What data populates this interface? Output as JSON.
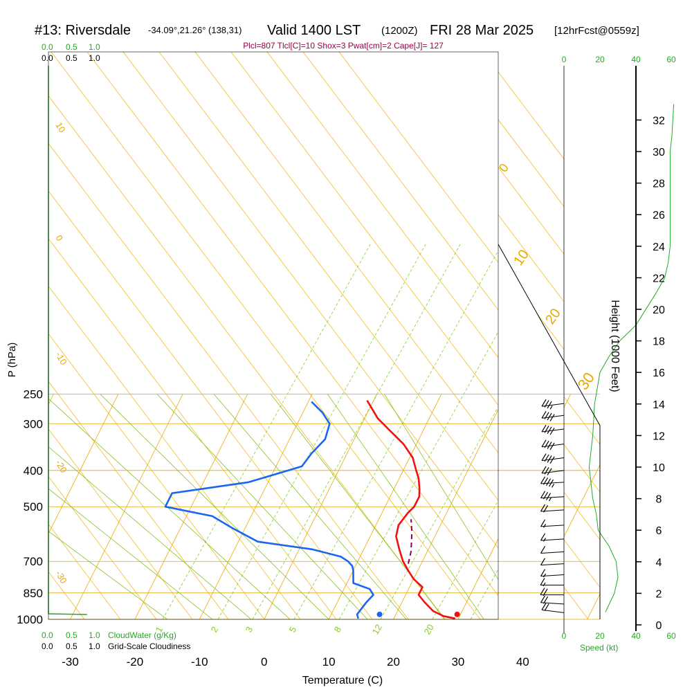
{
  "header": {
    "station": "#13: Riversdale",
    "location": "-34.09°,21.26° (138,31)",
    "valid": "Valid 1400 LST",
    "utc": "(1200Z)",
    "date": "FRI 28 Mar 2025",
    "forecast": "[12hrFcst@0559z]"
  },
  "indices": "Plcl=807 Tlcl[C]=10 Shox=3 Pwat[cm]=2 Cape[J]= 127",
  "axes": {
    "xlabel": "Temperature (C)",
    "ylabel": "P (hPa)",
    "height_label": "Height (1000 Feet)",
    "speed_label": "Speed (kt)",
    "cloudwater_label": "CloudWater (g/Kg)",
    "cloudiness_label": "Grid-Scale Cloudiness"
  },
  "scales": {
    "cloud_ticks": [
      "0.0",
      "0.5",
      "1.0"
    ],
    "speed_ticks": [
      "0",
      "20",
      "40",
      "60"
    ]
  },
  "colors": {
    "temperature": "#ee1111",
    "dewpoint": "#1a66ee",
    "parcel": "#880055",
    "isotherm": "#e8a800",
    "dry_adiabat": "#f0b400",
    "moist_adiabat": "#88c020",
    "mixing_ratio": "#88cc22",
    "green": "#22aa22",
    "indices": "#990044"
  },
  "chart_data": {
    "type": "line",
    "title": "#13: Riversdale Valid 1400 LST (1200Z) FRI 28 Mar 2025",
    "xlim": [
      -34,
      46
    ],
    "ylim": [
      1000,
      250
    ],
    "y_scale": "log",
    "x_ticks": [
      -30,
      -20,
      -10,
      0,
      10,
      20,
      30,
      40
    ],
    "pressure_ticks": [
      250,
      300,
      400,
      500,
      700,
      850,
      1000
    ],
    "height_ticks": [
      0,
      2,
      4,
      6,
      8,
      10,
      12,
      14,
      16,
      18,
      20,
      22,
      24,
      26,
      28,
      30,
      32
    ],
    "isotherm_labels": [
      {
        "temp": 10,
        "label": "10"
      },
      {
        "temp": 0,
        "label": "0"
      },
      {
        "temp": -10,
        "label": "-10"
      },
      {
        "temp": -20,
        "label": "-20"
      },
      {
        "temp": -30,
        "label": "-30"
      },
      {
        "temp": 0,
        "label": "0"
      },
      {
        "temp": 10,
        "label": "10"
      },
      {
        "temp": 20,
        "label": "20"
      },
      {
        "temp": 30,
        "label": "30"
      }
    ],
    "mixing_ratio_labels": [
      "1",
      "2",
      "3",
      "5",
      "8",
      "12",
      "20"
    ],
    "series": [
      {
        "name": "Temperature",
        "points": [
          {
            "p": 995,
            "t": 29.5
          },
          {
            "p": 980,
            "t": 27.5
          },
          {
            "p": 950,
            "t": 25.5
          },
          {
            "p": 900,
            "t": 23.5
          },
          {
            "p": 860,
            "t": 22.0
          },
          {
            "p": 820,
            "t": 22.0
          },
          {
            "p": 780,
            "t": 20.0
          },
          {
            "p": 740,
            "t": 18.5
          },
          {
            "p": 700,
            "t": 17.0
          },
          {
            "p": 650,
            "t": 15.5
          },
          {
            "p": 600,
            "t": 14.0
          },
          {
            "p": 560,
            "t": 13.5
          },
          {
            "p": 520,
            "t": 14.0
          },
          {
            "p": 500,
            "t": 14.5
          },
          {
            "p": 470,
            "t": 14.5
          },
          {
            "p": 450,
            "t": 14.0
          },
          {
            "p": 420,
            "t": 13.0
          },
          {
            "p": 400,
            "t": 12.0
          },
          {
            "p": 370,
            "t": 10.5
          },
          {
            "p": 340,
            "t": 8.0
          },
          {
            "p": 310,
            "t": 4.5
          },
          {
            "p": 290,
            "t": 2.0
          },
          {
            "p": 260,
            "t": -1.0
          }
        ]
      },
      {
        "name": "Dewpoint",
        "points": [
          {
            "p": 995,
            "t": 14.5
          },
          {
            "p": 970,
            "t": 14.0
          },
          {
            "p": 900,
            "t": 14.5
          },
          {
            "p": 860,
            "t": 15.0
          },
          {
            "p": 830,
            "t": 14.0
          },
          {
            "p": 800,
            "t": 11.0
          },
          {
            "p": 770,
            "t": 10.5
          },
          {
            "p": 740,
            "t": 10.0
          },
          {
            "p": 720,
            "t": 9.5
          },
          {
            "p": 700,
            "t": 8.5
          },
          {
            "p": 680,
            "t": 7.0
          },
          {
            "p": 650,
            "t": 2.0
          },
          {
            "p": 620,
            "t": -7.0
          },
          {
            "p": 570,
            "t": -12.0
          },
          {
            "p": 530,
            "t": -16.0
          },
          {
            "p": 500,
            "t": -24.0
          },
          {
            "p": 460,
            "t": -24.0
          },
          {
            "p": 430,
            "t": -13.0
          },
          {
            "p": 390,
            "t": -6.0
          },
          {
            "p": 360,
            "t": -5.5
          },
          {
            "p": 330,
            "t": -4.5
          },
          {
            "p": 300,
            "t": -5.0
          },
          {
            "p": 280,
            "t": -7.0
          },
          {
            "p": 262,
            "t": -9.5
          }
        ]
      },
      {
        "name": "Parcel",
        "points": [
          {
            "p": 710,
            "t": 18.0
          },
          {
            "p": 660,
            "t": 17.5
          },
          {
            "p": 620,
            "t": 16.8
          },
          {
            "p": 580,
            "t": 16.0
          },
          {
            "p": 540,
            "t": 15.0
          }
        ]
      }
    ],
    "surface_points": [
      {
        "name": "surface-temperature",
        "p": 995,
        "t": 29.8
      },
      {
        "name": "surface-dewpoint",
        "p": 995,
        "t": 17.8
      }
    ],
    "height_profile_speed": [
      {
        "h": 0.8,
        "v": 23
      },
      {
        "h": 2,
        "v": 28
      },
      {
        "h": 3,
        "v": 30
      },
      {
        "h": 4,
        "v": 29
      },
      {
        "h": 5,
        "v": 25
      },
      {
        "h": 6,
        "v": 19
      },
      {
        "h": 7,
        "v": 18
      },
      {
        "h": 8,
        "v": 16
      },
      {
        "h": 10,
        "v": 14
      },
      {
        "h": 12,
        "v": 16
      },
      {
        "h": 14,
        "v": 17
      },
      {
        "h": 16,
        "v": 20
      },
      {
        "h": 17,
        "v": 25
      },
      {
        "h": 18,
        "v": 31
      },
      {
        "h": 19,
        "v": 40
      },
      {
        "h": 21,
        "v": 51
      },
      {
        "h": 22,
        "v": 56
      },
      {
        "h": 23,
        "v": 58
      },
      {
        "h": 24,
        "v": 59
      },
      {
        "h": 27,
        "v": 59
      },
      {
        "h": 30,
        "v": 59
      },
      {
        "h": 31,
        "v": 60
      },
      {
        "h": 33,
        "v": 61
      }
    ],
    "wind_barbs": [
      {
        "p": 265,
        "dir": 290,
        "kt": 35
      },
      {
        "p": 285,
        "dir": 290,
        "kt": 40
      },
      {
        "p": 310,
        "dir": 290,
        "kt": 40
      },
      {
        "p": 340,
        "dir": 290,
        "kt": 40
      },
      {
        "p": 370,
        "dir": 290,
        "kt": 40
      },
      {
        "p": 400,
        "dir": 290,
        "kt": 30
      },
      {
        "p": 430,
        "dir": 280,
        "kt": 45
      },
      {
        "p": 470,
        "dir": 280,
        "kt": 35
      },
      {
        "p": 510,
        "dir": 280,
        "kt": 20
      },
      {
        "p": 560,
        "dir": 280,
        "kt": 15
      },
      {
        "p": 610,
        "dir": 280,
        "kt": 15
      },
      {
        "p": 660,
        "dir": 280,
        "kt": 10
      },
      {
        "p": 710,
        "dir": 280,
        "kt": 10
      },
      {
        "p": 760,
        "dir": 280,
        "kt": 15
      },
      {
        "p": 810,
        "dir": 270,
        "kt": 15
      },
      {
        "p": 860,
        "dir": 270,
        "kt": 20
      },
      {
        "p": 910,
        "dir": 260,
        "kt": 20
      },
      {
        "p": 960,
        "dir": 250,
        "kt": 20
      }
    ],
    "cloudwater_profile": [
      {
        "p": 998,
        "v": 0.0
      }
    ],
    "cloudiness_profile": [
      {
        "p": 998,
        "v": 0.9
      }
    ]
  }
}
